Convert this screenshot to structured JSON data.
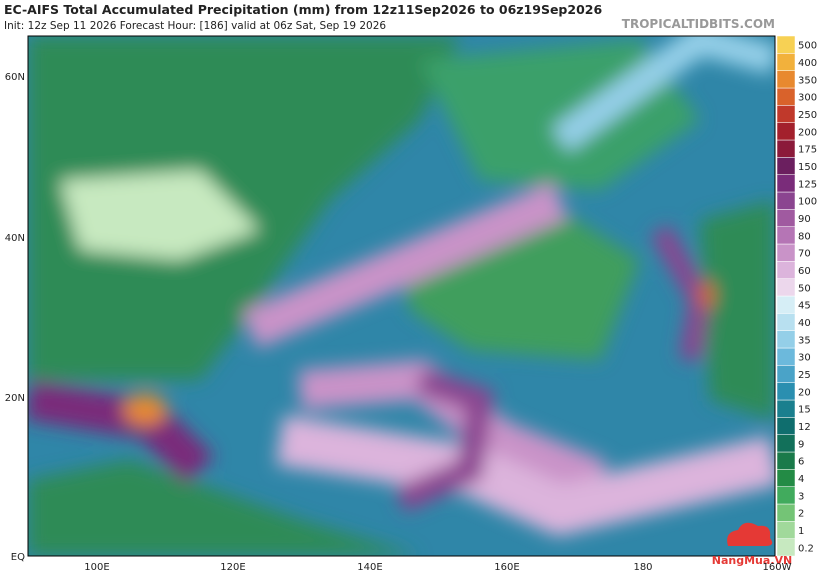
{
  "header": {
    "title": "EC-AIFS Total Accumulated Precipitation (mm) from 12z11Sep2026 to 06z19Sep2026",
    "subtitle": "Init: 12z Sep 11 2026   Forecast Hour: [186]   valid at 06z Sat, Sep 19 2026",
    "site": "TROPICALTIDBITS.COM"
  },
  "map": {
    "lat_labels": [
      "60N",
      "40N",
      "20N",
      "EQ"
    ],
    "lon_labels": [
      "100E",
      "120E",
      "140E",
      "160E",
      "180",
      "160W"
    ]
  },
  "colorbar": {
    "levels": [
      0.2,
      1,
      2,
      3,
      4,
      6,
      9,
      12,
      15,
      20,
      25,
      30,
      35,
      40,
      45,
      50,
      60,
      70,
      80,
      90,
      100,
      125,
      150,
      175,
      200,
      250,
      300,
      350,
      400,
      500
    ],
    "colors": [
      "#c7e9c0",
      "#a1d99b",
      "#74c476",
      "#41ab5d",
      "#238b45",
      "#1a7a4a",
      "#12705a",
      "#0f6e6e",
      "#1a7f8e",
      "#2a8fb0",
      "#4aa3c8",
      "#6cb9dc",
      "#94cfe8",
      "#b8e0f0",
      "#d6eef6",
      "#ecd7ec",
      "#dcb4dc",
      "#c993c8",
      "#b575b5",
      "#a05aa0",
      "#8b4590",
      "#7a2c7a",
      "#6b1f5f",
      "#8b1a3a",
      "#a3202c",
      "#c0392b",
      "#d9622b",
      "#e8892f",
      "#f2b13c",
      "#f7d154"
    ]
  },
  "watermark": {
    "text": "NangMua.VN"
  }
}
